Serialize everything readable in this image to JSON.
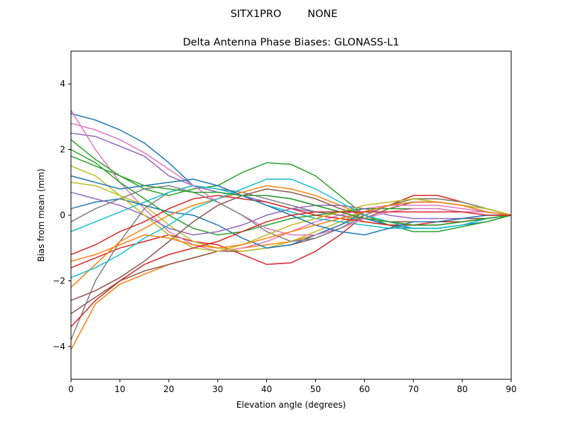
{
  "figure_title": "SITX1PRO        NONE",
  "chart_data": {
    "type": "line",
    "title": "Delta Antenna Phase Biases: GLONASS-L1",
    "xlabel": "Elevation angle (degrees)",
    "ylabel": "Bias from mean (mm)",
    "xlim": [
      0,
      90
    ],
    "ylim": [
      -5,
      5
    ],
    "xticks": [
      0,
      10,
      20,
      30,
      40,
      50,
      60,
      70,
      80,
      90
    ],
    "yticks": [
      -4,
      -2,
      0,
      2,
      4
    ],
    "grid": false,
    "legend": "none",
    "colors": [
      "#1f77b4",
      "#ff7f0e",
      "#2ca02c",
      "#d62728",
      "#9467bd",
      "#8c564b",
      "#e377c2",
      "#7f7f7f",
      "#bcbd22",
      "#17becf"
    ],
    "x": [
      0,
      5,
      10,
      15,
      20,
      25,
      30,
      35,
      40,
      45,
      50,
      55,
      60,
      65,
      70,
      75,
      80,
      85,
      90
    ],
    "series": [
      {
        "values": [
          3.1,
          2.9,
          2.6,
          2.2,
          1.6,
          0.9,
          0.7,
          0.6,
          0.6,
          0.5,
          0.3,
          0.1,
          -0.1,
          -0.3,
          -0.4,
          -0.4,
          -0.3,
          -0.2,
          0
        ]
      },
      {
        "values": [
          -4.1,
          -2.7,
          -2.1,
          -1.8,
          -1.5,
          -1.3,
          -1.1,
          -1.0,
          -0.9,
          -0.8,
          -0.6,
          -0.3,
          0,
          0.3,
          0.5,
          0.5,
          0.4,
          0.2,
          0
        ]
      },
      {
        "values": [
          1.8,
          1.5,
          1.2,
          0.8,
          0.6,
          0.8,
          0.9,
          1.3,
          1.6,
          1.55,
          1.2,
          0.6,
          0,
          -0.3,
          -0.5,
          -0.5,
          -0.35,
          -0.2,
          0
        ]
      },
      {
        "values": [
          -1.6,
          -1.3,
          -1.0,
          -0.8,
          -0.6,
          -0.8,
          -0.9,
          -1.2,
          -1.5,
          -1.45,
          -1.1,
          -0.6,
          0,
          0.3,
          0.6,
          0.6,
          0.4,
          0.2,
          0
        ]
      },
      {
        "values": [
          2.5,
          2.4,
          2.1,
          1.8,
          1.2,
          0.9,
          0.7,
          0.6,
          0.4,
          0.2,
          0.1,
          0,
          -0.1,
          -0.2,
          -0.3,
          -0.3,
          -0.2,
          -0.1,
          0
        ]
      },
      {
        "values": [
          -3.0,
          -2.5,
          -2.0,
          -1.7,
          -1.5,
          -1.3,
          -1.1,
          -1.1,
          -1.0,
          -0.9,
          -0.7,
          -0.4,
          -0.1,
          0.2,
          0.4,
          0.4,
          0.3,
          0.1,
          0
        ]
      },
      {
        "values": [
          3.2,
          2.0,
          1.0,
          0.2,
          -0.5,
          -0.9,
          -1.1,
          -1.0,
          -0.8,
          -0.5,
          -0.2,
          0.0,
          0.2,
          0.3,
          0.3,
          0.3,
          0.2,
          0.1,
          0
        ]
      },
      {
        "values": [
          -3.8,
          -2.0,
          -0.8,
          0.2,
          0.7,
          0.9,
          0.8,
          0.7,
          0.5,
          0.3,
          0.1,
          0,
          -0.2,
          -0.3,
          -0.3,
          -0.3,
          -0.2,
          -0.1,
          0
        ]
      },
      {
        "values": [
          1.0,
          0.9,
          0.6,
          0.3,
          -0.3,
          -0.8,
          -1.0,
          -1.1,
          -1.0,
          -0.8,
          -0.5,
          -0.2,
          0.1,
          0.3,
          0.5,
          0.5,
          0.4,
          0.2,
          0
        ]
      },
      {
        "values": [
          -0.5,
          -0.2,
          0.1,
          0.4,
          0.7,
          0.9,
          0.8,
          0.6,
          0.3,
          0.1,
          -0.1,
          -0.2,
          -0.3,
          -0.4,
          -0.4,
          -0.4,
          -0.3,
          -0.1,
          0
        ]
      },
      {
        "values": [
          0.2,
          0.4,
          0.5,
          0.3,
          0.1,
          0.0,
          -0.3,
          -0.7,
          -1.0,
          -0.9,
          -0.6,
          -0.3,
          0.1,
          0.3,
          0.4,
          0.4,
          0.3,
          0.2,
          0
        ]
      },
      {
        "values": [
          -2.2,
          -1.5,
          -0.8,
          -0.4,
          0.0,
          0.3,
          0.5,
          0.7,
          0.9,
          0.8,
          0.6,
          0.3,
          0.0,
          -0.2,
          -0.3,
          -0.3,
          -0.2,
          -0.1,
          0
        ]
      },
      {
        "values": [
          2.0,
          1.6,
          1.0,
          0.5,
          0.0,
          -0.4,
          -0.6,
          -0.5,
          -0.3,
          -0.1,
          0.0,
          0.1,
          0.2,
          0.2,
          0.2,
          0.2,
          0.1,
          0.1,
          0
        ]
      },
      {
        "values": [
          -1.2,
          -0.9,
          -0.5,
          -0.2,
          0.2,
          0.5,
          0.6,
          0.5,
          0.4,
          0.2,
          0.0,
          -0.1,
          -0.2,
          -0.3,
          -0.3,
          -0.2,
          -0.2,
          -0.1,
          0
        ]
      },
      {
        "values": [
          0.7,
          0.5,
          0.3,
          0.0,
          -0.4,
          -0.6,
          -0.5,
          -0.3,
          0.0,
          0.2,
          0.3,
          0.3,
          0.2,
          0.0,
          -0.1,
          -0.1,
          -0.1,
          0,
          0
        ]
      },
      {
        "values": [
          -2.6,
          -2.3,
          -1.9,
          -1.4,
          -0.8,
          -0.2,
          0.3,
          0.6,
          0.8,
          0.7,
          0.5,
          0.2,
          0.0,
          -0.2,
          -0.2,
          -0.2,
          -0.1,
          -0.1,
          0
        ]
      },
      {
        "values": [
          2.8,
          2.6,
          2.3,
          1.9,
          1.4,
          0.9,
          0.4,
          0.0,
          -0.4,
          -0.6,
          -0.6,
          -0.4,
          -0.1,
          0.1,
          0.2,
          0.2,
          0.1,
          0.1,
          0
        ]
      },
      {
        "values": [
          -0.2,
          0.2,
          0.5,
          0.8,
          0.9,
          0.7,
          0.4,
          0.0,
          -0.5,
          -0.8,
          -0.7,
          -0.4,
          0.0,
          0.3,
          0.5,
          0.5,
          0.4,
          0.2,
          0
        ]
      },
      {
        "values": [
          1.5,
          1.2,
          0.6,
          0.0,
          -0.6,
          -1.0,
          -1.1,
          -0.9,
          -0.6,
          -0.3,
          -0.1,
          0.1,
          0.3,
          0.4,
          0.5,
          0.4,
          0.3,
          0.2,
          0
        ]
      },
      {
        "values": [
          -1.9,
          -1.6,
          -1.2,
          -0.7,
          -0.3,
          0.2,
          0.5,
          0.8,
          1.1,
          1.1,
          0.8,
          0.4,
          0.0,
          -0.2,
          -0.4,
          -0.4,
          -0.3,
          -0.1,
          0
        ]
      },
      {
        "values": [
          1.2,
          1.0,
          0.8,
          0.9,
          1.0,
          1.1,
          0.9,
          0.6,
          0.3,
          0.0,
          -0.3,
          -0.5,
          -0.6,
          -0.4,
          -0.2,
          -0.2,
          -0.1,
          0,
          0
        ]
      },
      {
        "values": [
          -1.4,
          -1.2,
          -0.9,
          -0.6,
          -0.7,
          -0.9,
          -1.0,
          -0.9,
          -0.7,
          -0.5,
          -0.3,
          -0.1,
          0.1,
          0.3,
          0.4,
          0.4,
          0.3,
          0.1,
          0
        ]
      },
      {
        "values": [
          2.3,
          1.7,
          1.2,
          0.9,
          0.8,
          0.7,
          0.7,
          0.6,
          0.6,
          0.5,
          0.3,
          0.1,
          -0.1,
          -0.2,
          -0.3,
          -0.3,
          -0.2,
          -0.1,
          0
        ]
      },
      {
        "values": [
          -3.4,
          -2.6,
          -2.0,
          -1.5,
          -1.2,
          -1.0,
          -0.8,
          -0.5,
          -0.2,
          0.0,
          0.1,
          0.1,
          0.1,
          0.1,
          0.1,
          0.1,
          0.1,
          0,
          0
        ]
      }
    ]
  }
}
